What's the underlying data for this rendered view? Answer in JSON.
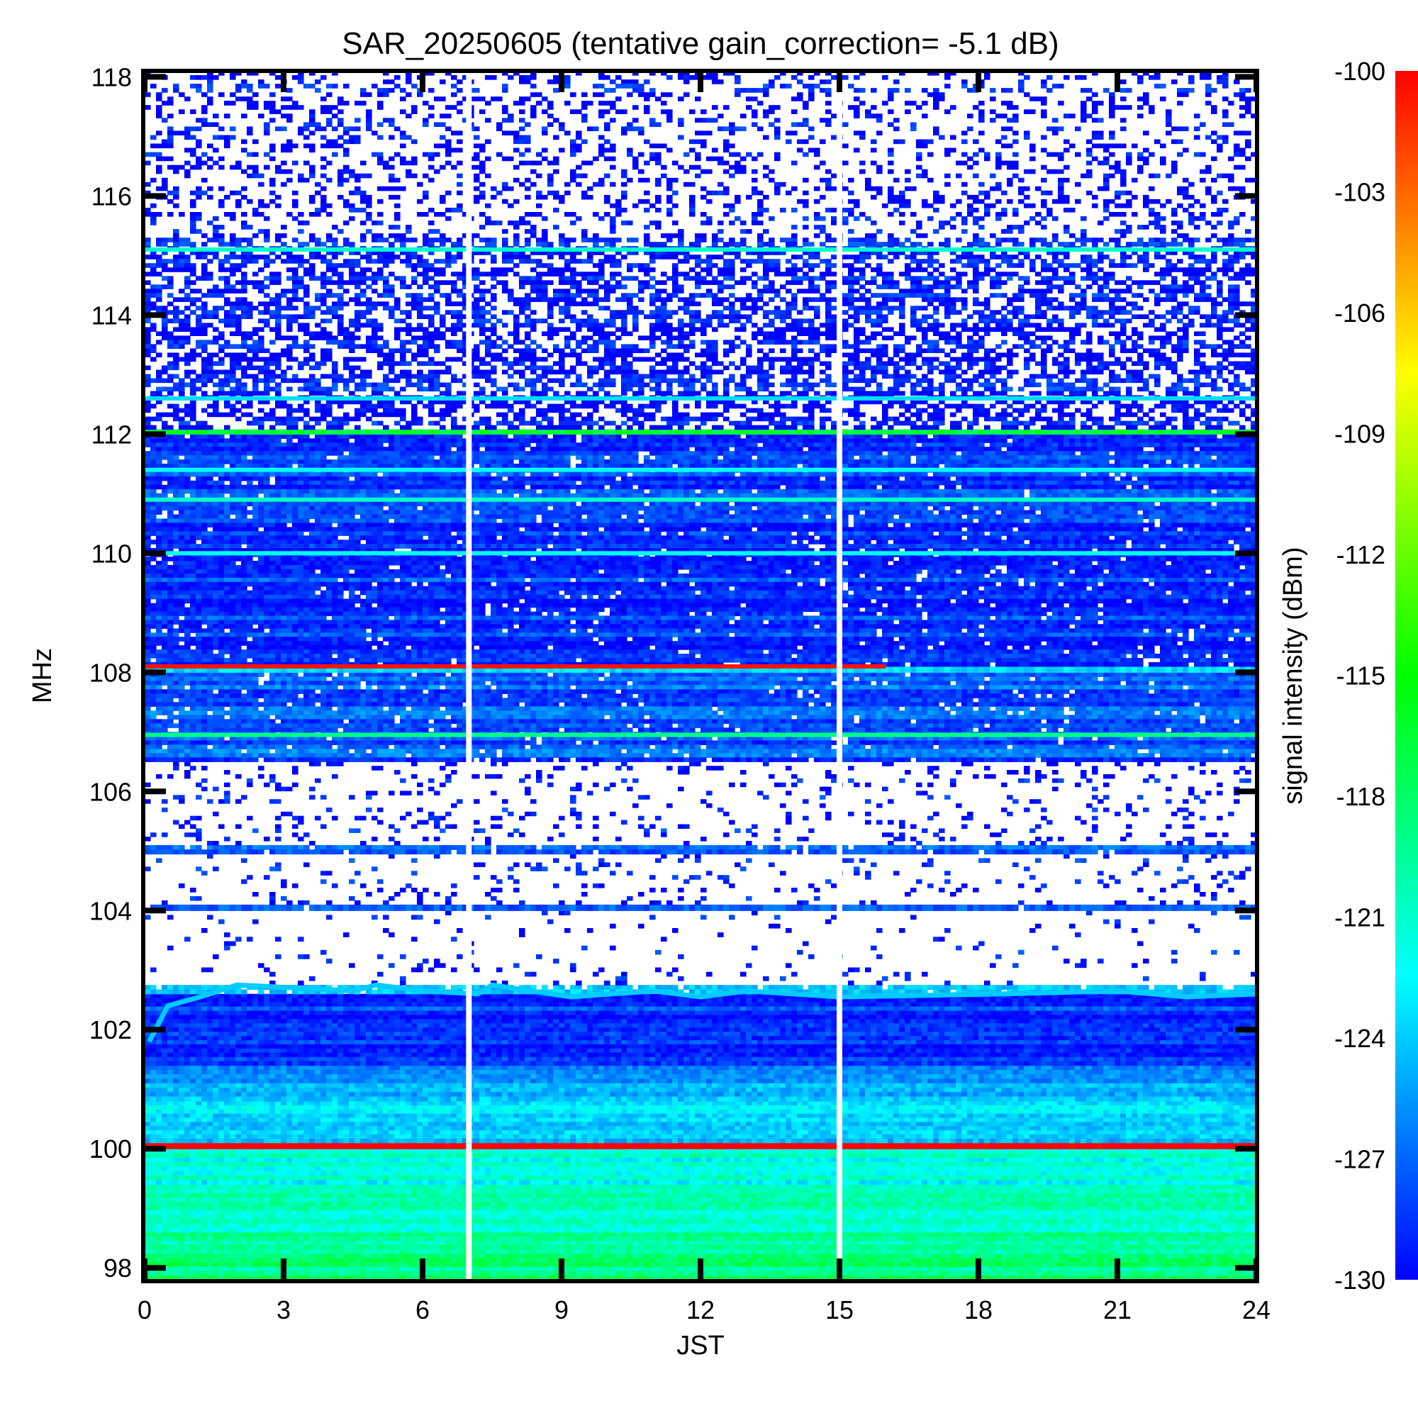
{
  "chart_data": {
    "type": "heatmap",
    "title": "SAR_20250605 (tentative gain_correction= -5.1 dB)",
    "xlabel": "JST",
    "ylabel": "MHz",
    "colorbar_label": "signal intensity (dBm)",
    "xlim": [
      0,
      24
    ],
    "ylim": [
      97.8,
      118.1
    ],
    "x_ticks": [
      0,
      3,
      6,
      9,
      12,
      15,
      18,
      21,
      24
    ],
    "x_tick_labels": [
      "0",
      "3",
      "6",
      "9",
      "12",
      "15",
      "18",
      "21",
      "24"
    ],
    "y_ticks": [
      98,
      100,
      102,
      104,
      106,
      108,
      110,
      112,
      114,
      116,
      118
    ],
    "y_tick_labels": [
      "98",
      "100",
      "102",
      "104",
      "106",
      "108",
      "110",
      "112",
      "114",
      "116",
      "118"
    ],
    "colorbar_range": [
      -130,
      -100
    ],
    "colorbar_ticks": [
      -100,
      -103,
      -106,
      -109,
      -112,
      -115,
      -118,
      -121,
      -124,
      -127,
      -130
    ],
    "colorbar_tick_labels": [
      "-100",
      "-103",
      "-106",
      "-109",
      "-112",
      "-115",
      "-118",
      "-121",
      "-124",
      "-127",
      "-130"
    ],
    "colormap_stops": [
      "#0000ff",
      "#00ffff",
      "#00ff00",
      "#ffff00",
      "#ff0000"
    ],
    "data_gaps_jst": [
      7.0,
      15.0
    ],
    "bands": [
      {
        "y0": 97.8,
        "y1": 98.6,
        "level_dbm": -119,
        "density": 1.0
      },
      {
        "y0": 98.6,
        "y1": 99.4,
        "level_dbm": -120.5,
        "density": 1.0
      },
      {
        "y0": 99.4,
        "y1": 100.0,
        "level_dbm": -121.5,
        "density": 1.0
      },
      {
        "y0": 100.0,
        "y1": 100.1,
        "level_dbm": -100.5,
        "density": 1.0
      },
      {
        "y0": 100.1,
        "y1": 100.8,
        "level_dbm": -123.5,
        "density": 1.0
      },
      {
        "y0": 100.8,
        "y1": 101.4,
        "level_dbm": -125.5,
        "density": 1.0
      },
      {
        "y0": 101.4,
        "y1": 102.6,
        "level_dbm": -128.5,
        "density": 1.0
      },
      {
        "y0": 102.6,
        "y1": 102.75,
        "level_dbm": -124,
        "density": 0.9
      },
      {
        "y0": 102.75,
        "y1": 104.0,
        "level_dbm": -129,
        "density": 0.05
      },
      {
        "y0": 104.0,
        "y1": 104.1,
        "level_dbm": -126,
        "density": 0.95
      },
      {
        "y0": 104.1,
        "y1": 104.95,
        "level_dbm": -129.5,
        "density": 0.1
      },
      {
        "y0": 104.95,
        "y1": 105.1,
        "level_dbm": -127,
        "density": 0.95
      },
      {
        "y0": 105.1,
        "y1": 106.5,
        "level_dbm": -129.5,
        "density": 0.12
      },
      {
        "y0": 106.5,
        "y1": 108.0,
        "level_dbm": -127.5,
        "density": 0.95
      },
      {
        "y0": 108.0,
        "y1": 108.1,
        "level_dbm": -124,
        "density": 1.0
      },
      {
        "y0": 108.1,
        "y1": 112.0,
        "level_dbm": -128.5,
        "density": 0.95
      },
      {
        "y0": 112.0,
        "y1": 112.08,
        "level_dbm": -118,
        "density": 1.0
      },
      {
        "y0": 112.08,
        "y1": 115.3,
        "level_dbm": -129.5,
        "density": 0.55
      },
      {
        "y0": 115.3,
        "y1": 118.1,
        "level_dbm": -129.8,
        "density": 0.25
      }
    ],
    "lines": [
      {
        "y": 108.1,
        "level_dbm": -100.5,
        "x0": 0,
        "x1": 16
      },
      {
        "y": 110.0,
        "level_dbm": -122,
        "x0": 0,
        "x1": 24
      },
      {
        "y": 110.9,
        "level_dbm": -121,
        "x0": 0,
        "x1": 24
      },
      {
        "y": 111.4,
        "level_dbm": -122.5,
        "x0": 0,
        "x1": 24
      },
      {
        "y": 106.95,
        "level_dbm": -119,
        "x0": 0,
        "x1": 24
      },
      {
        "y": 112.6,
        "level_dbm": -123.5,
        "x0": 0,
        "x1": 24
      },
      {
        "y": 115.1,
        "level_dbm": -121,
        "x0": 0,
        "x1": 24
      }
    ],
    "drifting_carrier": {
      "level_dbm": -124,
      "points": [
        [
          0.1,
          101.8
        ],
        [
          0.5,
          102.4
        ],
        [
          1.2,
          102.55
        ],
        [
          2.0,
          102.75
        ],
        [
          4.5,
          102.65
        ],
        [
          5.0,
          102.75
        ],
        [
          6.0,
          102.65
        ],
        [
          7.2,
          102.6
        ],
        [
          7.5,
          102.75
        ],
        [
          9.2,
          102.55
        ],
        [
          11.0,
          102.65
        ],
        [
          12.0,
          102.55
        ],
        [
          13.0,
          102.65
        ],
        [
          15.0,
          102.55
        ],
        [
          18.5,
          102.6
        ],
        [
          21.0,
          102.65
        ],
        [
          22.5,
          102.55
        ],
        [
          24.0,
          102.6
        ]
      ]
    },
    "grid": false
  }
}
